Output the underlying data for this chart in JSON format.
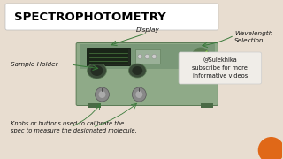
{
  "bg_outer": "#e8ddd0",
  "bg_inner": "#d0cfc8",
  "title_text": "SPECTROPHOTOMETRY",
  "title_bg": "#ffffff",
  "title_color": "#000000",
  "title_fontsize": 9.5,
  "title_fontweight": "bold",
  "label_display": "Display",
  "label_wavelength": "Wavelength\nSelection",
  "label_sample": "Sample Holder",
  "label_knobs": "Knobs or buttons used to calibrate the\nspec to measure the designated molecule.",
  "label_watermark": "@Sulekhika\nsubscribe for more\ninformative videos",
  "machine_body_color": "#8faa88",
  "machine_top_color": "#7a9878",
  "machine_edge_color": "#5a7a55",
  "machine_shadow": "#4a6a45",
  "display_bg": "#222a20",
  "display_line": "#4a7a40",
  "display_screen_bg": "#1a2518",
  "knob_color": "#888888",
  "knob_inner": "#aaaaaa",
  "sample_hole": "#3a4a38",
  "sample_hole_inner": "#252d23",
  "controls_color": "#aaaaaa",
  "wl_dial_color": "#5a7a50",
  "wl_indicator": "#88cc44",
  "orange_color": "#e06818",
  "annotation_color": "#111111",
  "annotation_fontstyle": "italic",
  "annotation_fontsize": 5.2,
  "watermark_fontsize": 4.8,
  "knob_label_fontsize": 4.8,
  "watermark_box_color": "#f0ede8",
  "watermark_box_edge": "#cccccc",
  "arrow_color": "#3a7a3a",
  "arrow_lw": 0.7
}
